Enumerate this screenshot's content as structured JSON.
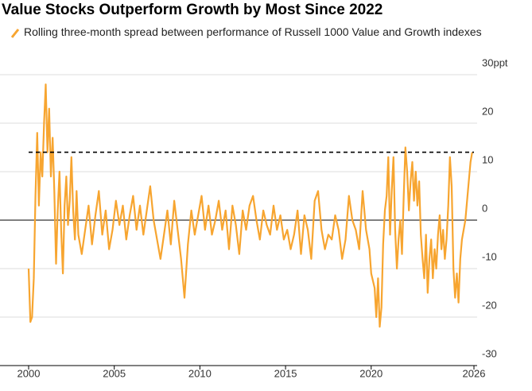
{
  "chart_data": {
    "type": "line",
    "title": "Value Stocks Outperform Growth by Most Since 2022",
    "x": [
      2000.0,
      2000.1,
      2000.2,
      2000.3,
      2000.4,
      2000.5,
      2000.6,
      2000.7,
      2000.8,
      2000.9,
      2001.0,
      2001.1,
      2001.2,
      2001.3,
      2001.4,
      2001.5,
      2001.6,
      2001.7,
      2001.8,
      2001.9,
      2002.0,
      2002.1,
      2002.2,
      2002.3,
      2002.4,
      2002.5,
      2002.6,
      2002.7,
      2002.8,
      2002.9,
      2003.1,
      2003.3,
      2003.5,
      2003.7,
      2003.9,
      2004.1,
      2004.3,
      2004.5,
      2004.7,
      2004.9,
      2005.1,
      2005.3,
      2005.5,
      2005.7,
      2005.9,
      2006.1,
      2006.3,
      2006.5,
      2006.7,
      2006.9,
      2007.1,
      2007.3,
      2007.5,
      2007.7,
      2007.9,
      2008.1,
      2008.3,
      2008.5,
      2008.7,
      2008.9,
      2009.1,
      2009.3,
      2009.5,
      2009.7,
      2009.9,
      2010.1,
      2010.3,
      2010.5,
      2010.7,
      2010.9,
      2011.1,
      2011.3,
      2011.5,
      2011.7,
      2011.9,
      2012.1,
      2012.3,
      2012.5,
      2012.7,
      2012.9,
      2013.1,
      2013.3,
      2013.5,
      2013.7,
      2013.9,
      2014.1,
      2014.3,
      2014.5,
      2014.7,
      2014.9,
      2015.1,
      2015.3,
      2015.5,
      2015.7,
      2015.9,
      2016.1,
      2016.3,
      2016.5,
      2016.7,
      2016.9,
      2017.1,
      2017.3,
      2017.5,
      2017.7,
      2017.9,
      2018.1,
      2018.3,
      2018.5,
      2018.7,
      2018.9,
      2019.1,
      2019.3,
      2019.5,
      2019.7,
      2019.9,
      2020.0,
      2020.2,
      2020.3,
      2020.4,
      2020.5,
      2020.6,
      2020.7,
      2020.8,
      2020.9,
      2021.0,
      2021.1,
      2021.2,
      2021.3,
      2021.4,
      2021.5,
      2021.6,
      2021.7,
      2021.8,
      2021.9,
      2022.0,
      2022.1,
      2022.2,
      2022.3,
      2022.4,
      2022.5,
      2022.6,
      2022.7,
      2022.8,
      2022.9,
      2023.0,
      2023.1,
      2023.2,
      2023.3,
      2023.4,
      2023.5,
      2023.6,
      2023.7,
      2023.8,
      2023.9,
      2024.0,
      2024.1,
      2024.2,
      2024.3,
      2024.4,
      2024.5,
      2024.6,
      2024.7,
      2024.8,
      2024.9,
      2025.0,
      2025.1,
      2025.2,
      2025.3,
      2025.5,
      2025.7,
      2025.8,
      2025.9
    ],
    "series": [
      {
        "name": "Rolling three-month spread between performance of Russell 1000 Value and Growth indexes",
        "color": "#f7a530",
        "values": [
          -10,
          -21,
          -20,
          -12,
          5,
          18,
          3,
          14,
          9,
          20,
          28,
          14,
          23,
          9,
          17,
          6,
          -9,
          2,
          10,
          -2,
          -11,
          3,
          9,
          -1,
          4,
          13,
          2,
          -4,
          6,
          -3,
          -7,
          -2,
          3,
          -5,
          1,
          6,
          -3,
          2,
          -6,
          -2,
          4,
          -1,
          3,
          -4,
          1,
          5,
          -2,
          3,
          -3,
          2,
          7,
          0,
          -4,
          -8,
          -3,
          2,
          -5,
          4,
          -2,
          -8,
          -16,
          -5,
          2,
          -3,
          1,
          5,
          -2,
          3,
          -3,
          0,
          4,
          -2,
          2,
          -6,
          3,
          -1,
          -7,
          2,
          -2,
          3,
          5,
          0,
          -4,
          2,
          -1,
          -3,
          3,
          -2,
          1,
          -4,
          -2,
          -6,
          -3,
          2,
          -7,
          1,
          -2,
          -8,
          4,
          6,
          -2,
          -6,
          -3,
          -4,
          1,
          -2,
          -8,
          -4,
          5,
          0,
          -2,
          -6,
          6,
          -2,
          -6,
          -11,
          -14,
          -20,
          -12,
          -22,
          -18,
          -5,
          2,
          5,
          13,
          -3,
          6,
          13,
          -2,
          -10,
          -4,
          0,
          -7,
          5,
          15,
          10,
          2,
          8,
          12,
          4,
          10,
          3,
          8,
          -3,
          -8,
          -12,
          -3,
          -15,
          -8,
          -4,
          -12,
          -6,
          -10,
          -3,
          1,
          -6,
          -2,
          -8,
          -4,
          3,
          13,
          7,
          -10,
          -16,
          -11,
          -17,
          -8,
          -4,
          0,
          8,
          12,
          14
        ]
      }
    ],
    "reference_line": 14,
    "xlim": [
      2000,
      2026
    ],
    "xticks": [
      2000,
      2005,
      2010,
      2015,
      2020,
      2026
    ],
    "ylim": [
      -30,
      30
    ],
    "yticks": [
      {
        "value": 30,
        "label": "30ppt"
      },
      20,
      10,
      0,
      -10,
      -20,
      -30
    ],
    "grid": true
  }
}
